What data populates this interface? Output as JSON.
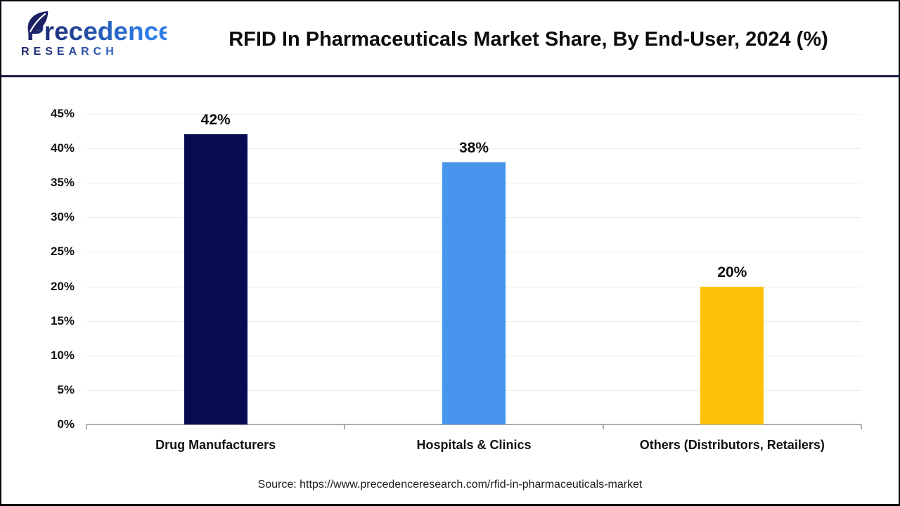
{
  "header": {
    "logo_line1": "Precedence",
    "logo_line2": "RESEARCH",
    "title": "RFID In Pharmaceuticals Market Share, By End-User, 2024 (%)"
  },
  "footer": {
    "source": "Source: https://www.precedenceresearch.com/rfid-in-pharmaceuticals-market"
  },
  "colors": {
    "header_separator": "#1b1b45",
    "axis_line": "#ababab",
    "gridline": "#ececec",
    "logo_navy": "#1b1f63",
    "logo_blue": "#2f7de8"
  },
  "chart_data": {
    "type": "bar",
    "title": "RFID In Pharmaceuticals Market Share, By End-User, 2024 (%)",
    "categories": [
      "Drug Manufacturers",
      "Hospitals & Clinics",
      "Others (Distributors, Retailers)"
    ],
    "values": [
      42,
      38,
      20
    ],
    "value_labels": [
      "42%",
      "38%",
      "20%"
    ],
    "bar_colors": [
      "#070b52",
      "#4795ec",
      "#fdc107"
    ],
    "xlabel": "",
    "ylabel": "",
    "ylim": [
      0,
      45
    ],
    "ytick_step": 5,
    "ytick_labels": [
      "0%",
      "5%",
      "10%",
      "15%",
      "20%",
      "25%",
      "30%",
      "35%",
      "40%",
      "45%"
    ],
    "grid": true,
    "legend": false
  }
}
